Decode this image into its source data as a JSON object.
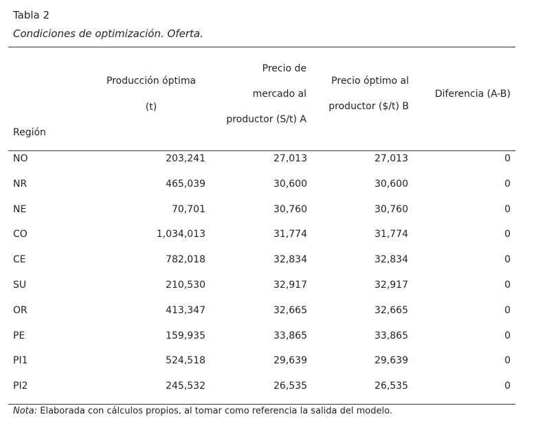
{
  "title": "Tabla 2",
  "subtitle": "Condiciones de optimización. Oferta.",
  "headers": {
    "region": "Región",
    "produccion": [
      "Producción óptima",
      "(t)"
    ],
    "precio_mercado": [
      "Precio de",
      "mercado al",
      "productor (S/t) A"
    ],
    "precio_optimo": [
      "Precio óptimo al",
      "productor ($/t) B"
    ],
    "diferencia": "Diferencia (A-B)"
  },
  "rows": [
    {
      "region": "NO",
      "produccion": "203,241",
      "precio_mercado": "27,013",
      "precio_optimo": "27,013",
      "diferencia": "0"
    },
    {
      "region": "NR",
      "produccion": "465,039",
      "precio_mercado": "30,600",
      "precio_optimo": "30,600",
      "diferencia": "0"
    },
    {
      "region": "NE",
      "produccion": "70,701",
      "precio_mercado": "30,760",
      "precio_optimo": "30,760",
      "diferencia": "0"
    },
    {
      "region": "CO",
      "produccion": "1,034,013",
      "precio_mercado": "31,774",
      "precio_optimo": "31,774",
      "diferencia": "0"
    },
    {
      "region": "CE",
      "produccion": "782,018",
      "precio_mercado": "32,834",
      "precio_optimo": "32,834",
      "diferencia": "0"
    },
    {
      "region": "SU",
      "produccion": "210,530",
      "precio_mercado": "32,917",
      "precio_optimo": "32,917",
      "diferencia": "0"
    },
    {
      "region": "OR",
      "produccion": "413,347",
      "precio_mercado": "32,665",
      "precio_optimo": "32,665",
      "diferencia": "0"
    },
    {
      "region": "PE",
      "produccion": "159,935",
      "precio_mercado": "33,865",
      "precio_optimo": "33,865",
      "diferencia": "0"
    },
    {
      "region": "PI1",
      "produccion": "524,518",
      "precio_mercado": "29,639",
      "precio_optimo": "29,639",
      "diferencia": "0"
    },
    {
      "region": "PI2",
      "produccion": "245,532",
      "precio_mercado": "26,535",
      "precio_optimo": "26,535",
      "diferencia": "0"
    }
  ],
  "note": {
    "label": "Nota:",
    "text": " Elaborada con cálculos propios, al tomar como referencia la salida del modelo."
  }
}
